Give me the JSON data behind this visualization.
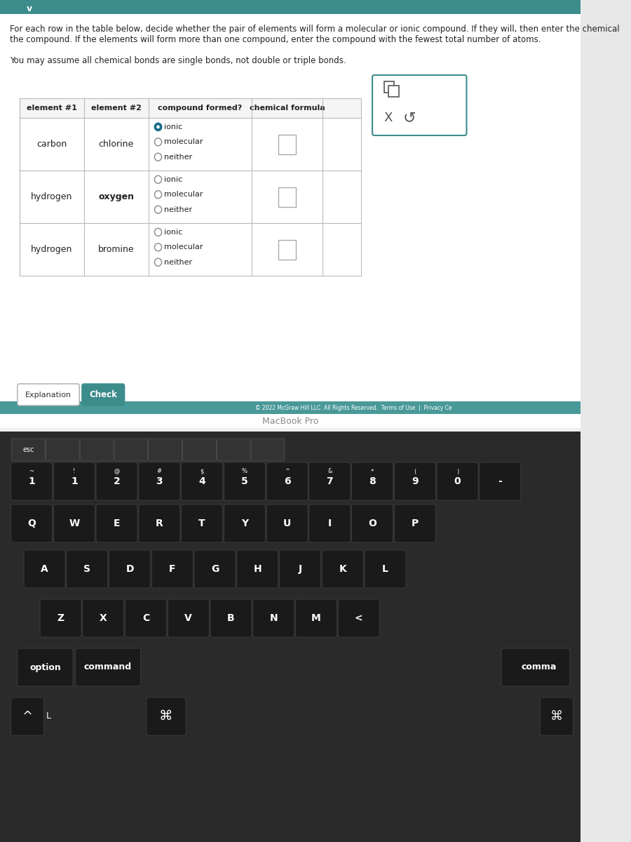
{
  "title_text": "For each row in the table below, decide whether the pair of elements will form a molecular or ionic compound. If they will, then enter the chemical\nthe compound. If the elements will form more than one compound, enter the compound with the fewest total number of atoms.",
  "subtitle_text": "You may assume all chemical bonds are single bonds, not double or triple bonds.",
  "header": [
    "element #1",
    "element #2",
    "compound formed?",
    "chemical formula"
  ],
  "rows": [
    {
      "elem1": "carbon",
      "elem2": "chlorine",
      "options": [
        "ionic",
        "molecular",
        "neither"
      ],
      "selected": 0
    },
    {
      "elem1": "hydrogen",
      "elem2": "oxygen",
      "options": [
        "ionic",
        "molecular",
        "neither"
      ],
      "selected": -1
    },
    {
      "elem1": "hydrogen",
      "elem2": "bromine",
      "options": [
        "ionic",
        "molecular",
        "neither"
      ],
      "selected": -1
    }
  ],
  "bg_color": "#e8e8e8",
  "screen_bg": "#f0f0f0",
  "table_border": "#bbbbbb",
  "header_bg": "#f5f5f5",
  "cell_bg": "#ffffff",
  "teal_color": "#3d8c8c",
  "teal_bar_color": "#4a9999",
  "button_check_bg": "#3d8c8c",
  "button_explanation_bg": "#ffffff",
  "selected_radio_color": "#1a6b8a",
  "unselected_radio_color": "#888888",
  "popup_border": "#3d8c8c",
  "keyboard_bg": "#2a2a2a",
  "key_bg": "#1a1a1a",
  "key_text": "#ffffff",
  "bottom_bar_color": "#4a9999",
  "copyright_text": "© 2022 McGraw Hill LLC. All Rights Reserved.  Terms of Use  |  Privacy Ce",
  "macbook_text": "MacBook Pro"
}
